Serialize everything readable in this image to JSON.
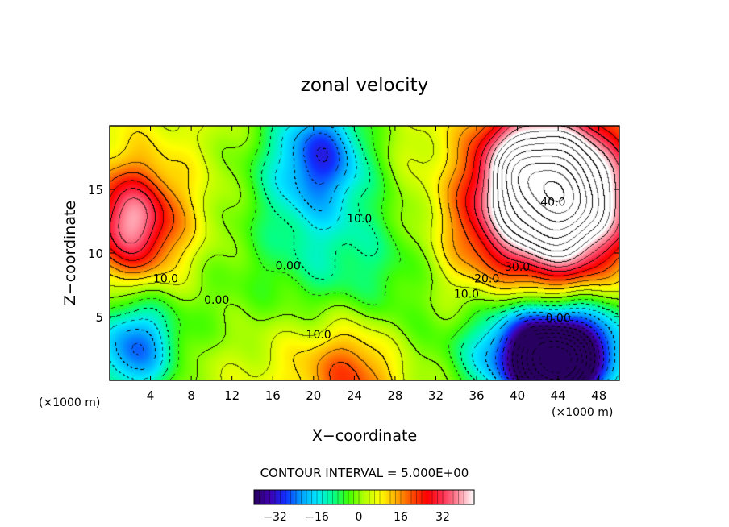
{
  "chart_data": {
    "type": "heatmap",
    "title": "zonal velocity",
    "xlabel": "X−coordinate",
    "ylabel": "Z−coordinate",
    "x_unit_left": "(×1000 m)",
    "x_unit_right": "(×1000 m)",
    "xlim": [
      0,
      50
    ],
    "ylim": [
      0,
      20
    ],
    "x_ticks": [
      4,
      8,
      12,
      16,
      20,
      24,
      28,
      32,
      36,
      40,
      44,
      48
    ],
    "y_ticks": [
      5,
      10,
      15
    ],
    "contour_interval_text": "CONTOUR INTERVAL = 5.000E+00",
    "contour_interval": 5,
    "colorbar": {
      "range": [
        -40,
        44
      ],
      "ticks": [
        -32,
        -16,
        0,
        16,
        32
      ],
      "palette": [
        "#280060",
        "#4000b0",
        "#1030ff",
        "#00a0ff",
        "#00e8ff",
        "#00ff90",
        "#40ff00",
        "#b0ff00",
        "#ffff00",
        "#ffb000",
        "#ff5000",
        "#ff0000",
        "#ff3050",
        "#ff90a0",
        "#ffffff"
      ]
    },
    "contour_labels": [
      {
        "text": "40.0",
        "x": 43.5,
        "z": 13.7
      },
      {
        "text": "30.0",
        "x": 40.0,
        "z": 8.6
      },
      {
        "text": "20.0",
        "x": 37.0,
        "z": 7.7
      },
      {
        "text": "10.0",
        "x": 35.0,
        "z": 6.5
      },
      {
        "text": "0.00",
        "x": 44.0,
        "z": 4.6
      },
      {
        "text": "10.0",
        "x": 24.5,
        "z": 12.4
      },
      {
        "text": "0.00",
        "x": 17.5,
        "z": 8.7
      },
      {
        "text": "10.0",
        "x": 5.5,
        "z": 7.7
      },
      {
        "text": "0.00",
        "x": 10.5,
        "z": 6.0
      },
      {
        "text": "10.0",
        "x": 20.5,
        "z": 3.3
      }
    ],
    "field_features": [
      {
        "x": 2,
        "z": 12.5,
        "value": 34,
        "s": 2.8
      },
      {
        "x": 5,
        "z": 11,
        "value": 14,
        "s": 4
      },
      {
        "x": 10,
        "z": 7,
        "value": -2,
        "s": 4
      },
      {
        "x": 19,
        "z": 16,
        "value": -10,
        "s": 5
      },
      {
        "x": 21,
        "z": 18,
        "value": -14,
        "s": 3
      },
      {
        "x": 20,
        "z": 8,
        "value": -2,
        "s": 4
      },
      {
        "x": 27,
        "z": 9,
        "value": -4,
        "s": 4
      },
      {
        "x": 2,
        "z": 2,
        "value": -14,
        "s": 3
      },
      {
        "x": 3,
        "z": 3.5,
        "value": -6,
        "s": 3
      },
      {
        "x": 24,
        "z": 0.5,
        "value": 22,
        "s": 3
      },
      {
        "x": 19,
        "z": 1.5,
        "value": 10,
        "s": 3
      },
      {
        "x": 43,
        "z": 13.5,
        "value": 46,
        "s": 4.5
      },
      {
        "x": 46,
        "z": 15,
        "value": 38,
        "s": 4
      },
      {
        "x": 40,
        "z": 17,
        "value": 30,
        "s": 3
      },
      {
        "x": 36,
        "z": 12,
        "value": 14,
        "s": 3
      },
      {
        "x": 44,
        "z": 1,
        "value": -44,
        "s": 2.8
      },
      {
        "x": 41,
        "z": 2.5,
        "value": -26,
        "s": 3
      },
      {
        "x": 48,
        "z": 3,
        "value": -20,
        "s": 3
      },
      {
        "x": 36,
        "z": 2,
        "value": -6,
        "s": 3
      },
      {
        "x": 44,
        "z": 6.5,
        "value": 6,
        "s": 3
      },
      {
        "x": 31,
        "z": 18,
        "value": 6,
        "s": 3
      },
      {
        "x": 29,
        "z": 3,
        "value": 2,
        "s": 3
      }
    ]
  }
}
